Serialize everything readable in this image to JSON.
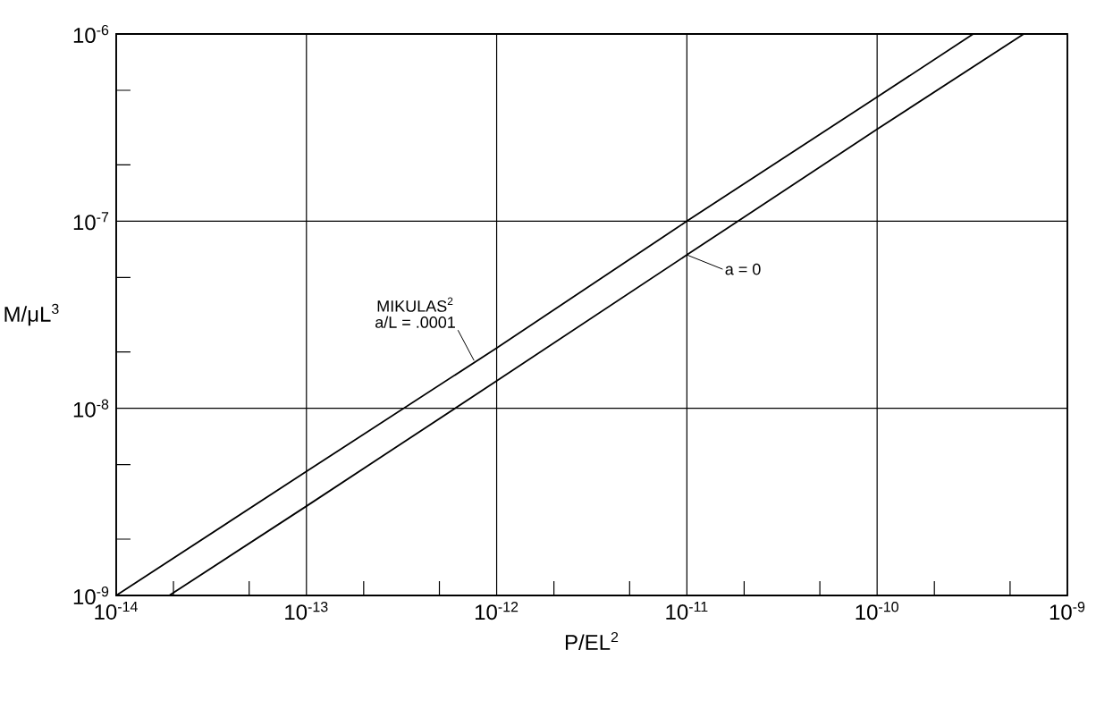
{
  "chart_data": {
    "type": "line",
    "xlabel": "P/EL$^{2}$",
    "ylabel": "M/μL$^{3}$",
    "series": [
      {
        "color": "#000000",
        "x": [
          1e-14,
          1e-13,
          1e-12,
          1e-11,
          1e-10,
          3.2e-10
        ],
        "values": [
          1e-09,
          4.6e-09,
          2.1e-08,
          1e-07,
          4.6e-07,
          1e-06
        ]
      },
      {
        "color": "#000000",
        "x": [
          1.9e-14,
          1e-13,
          1e-12,
          1e-11,
          1e-10,
          5.9e-10
        ],
        "values": [
          1e-09,
          3e-09,
          1.4e-08,
          6.6e-08,
          3.1e-07,
          1e-06
        ]
      }
    ],
    "annotations": [
      {
        "text": "a/L = .0001",
        "x": 7.6e-13,
        "y": 1.8e-08
      },
      "MIKULAS$^{2}$",
      {
        "text": "a = 0",
        "x": 1e-11,
        "y": 6.6e-08
      }
    ],
    "log": "xy",
    "grid": true,
    "marker": "none",
    "line_style": "solid",
    "xlim": [
      1e-14,
      1e-09
    ],
    "ylim": [
      1e-09,
      1e-06
    ],
    "xticks": [
      {
        "value": 1e-14,
        "label": "10$^{-14}$"
      },
      {
        "value": 2e-14,
        "label": null
      },
      {
        "value": 5e-14,
        "label": null
      },
      {
        "value": 1e-13,
        "label": "10$^{-13}$"
      },
      {
        "value": 2e-13,
        "label": null
      },
      {
        "value": 5e-13,
        "label": null
      },
      {
        "value": 1e-12,
        "label": "10$^{-12}$"
      },
      {
        "value": 2e-12,
        "label": null
      },
      {
        "value": 5e-12,
        "label": null
      },
      {
        "value": 1e-11,
        "label": "10$^{-11}$"
      },
      {
        "value": 2e-11,
        "label": null
      },
      {
        "value": 5e-11,
        "label": null
      },
      {
        "value": 1e-10,
        "label": "10$^{-10}$"
      },
      {
        "value": 2e-10,
        "label": null
      },
      {
        "value": 5e-10,
        "label": null
      },
      {
        "value": 1e-09,
        "label": "10$^{-9}$"
      }
    ],
    "yticks": [
      {
        "value": 1e-09,
        "label": "10$^{-9}$"
      },
      {
        "value": 2e-09,
        "label": null
      },
      {
        "value": 5e-09,
        "label": null
      },
      {
        "value": 1e-08,
        "label": "10$^{-8}$"
      },
      {
        "value": 2e-08,
        "label": null
      },
      {
        "value": 5e-08,
        "label": null
      },
      {
        "value": 1e-07,
        "label": "10$^{-7}$"
      },
      {
        "value": 2e-07,
        "label": null
      },
      {
        "value": 5e-07,
        "label": null
      },
      {
        "value": 1e-06,
        "label": "10$^{-6}$"
      }
    ]
  }
}
